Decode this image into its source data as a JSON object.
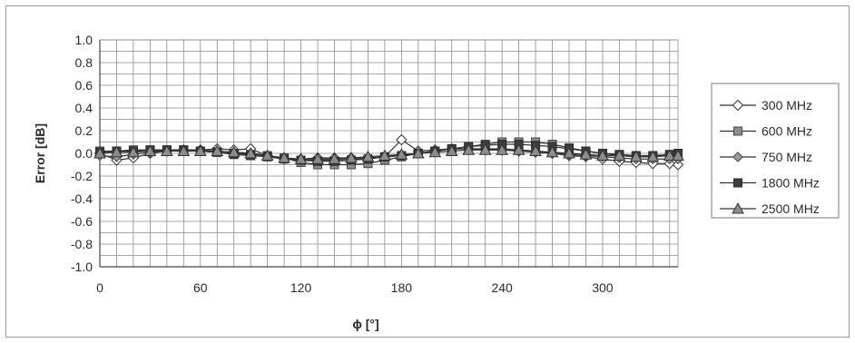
{
  "chart_data": {
    "type": "line",
    "xlabel": "ϕ [°]",
    "ylabel": "Error [dB]",
    "xlim": [
      0,
      345
    ],
    "ylim": [
      -1.0,
      1.0
    ],
    "x_ticks": [
      0,
      60,
      120,
      180,
      240,
      300
    ],
    "y_ticks": [
      1.0,
      0.8,
      0.6,
      0.4,
      0.2,
      0.0,
      -0.2,
      -0.4,
      -0.6,
      -0.8,
      -1.0
    ],
    "y_tick_labels": [
      "1.0",
      "0.8",
      "0.6",
      "0.4",
      "0.2",
      "0.0",
      "-0.2",
      "-0.4",
      "-0.6",
      "-0.8",
      "-1.0"
    ],
    "grid": true,
    "legend_position": "right",
    "x": [
      0,
      10,
      20,
      30,
      40,
      50,
      60,
      70,
      80,
      90,
      100,
      110,
      120,
      130,
      140,
      150,
      160,
      170,
      180,
      190,
      200,
      210,
      220,
      230,
      240,
      250,
      260,
      270,
      280,
      290,
      300,
      310,
      320,
      330,
      340,
      345
    ],
    "series": [
      {
        "name": "300 MHz",
        "marker": "diamond-open",
        "values": [
          0.0,
          -0.06,
          -0.04,
          0.0,
          0.02,
          0.03,
          0.03,
          0.04,
          0.03,
          0.04,
          -0.02,
          -0.05,
          -0.05,
          -0.04,
          -0.04,
          -0.04,
          -0.04,
          -0.03,
          0.12,
          0.02,
          0.03,
          0.04,
          0.04,
          0.03,
          0.03,
          0.02,
          0.01,
          0.0,
          -0.02,
          -0.03,
          -0.05,
          -0.07,
          -0.08,
          -0.09,
          -0.09,
          -0.1
        ]
      },
      {
        "name": "600 MHz",
        "marker": "square-grey",
        "values": [
          0.02,
          0.02,
          0.03,
          0.03,
          0.03,
          0.03,
          0.02,
          0.01,
          0.0,
          -0.01,
          -0.02,
          -0.04,
          -0.08,
          -0.1,
          -0.1,
          -0.1,
          -0.09,
          -0.06,
          -0.03,
          0.0,
          0.02,
          0.04,
          0.06,
          0.08,
          0.1,
          0.1,
          0.1,
          0.08,
          0.05,
          0.02,
          0.0,
          -0.02,
          -0.03,
          -0.03,
          -0.02,
          0.0
        ]
      },
      {
        "name": "750 MHz",
        "marker": "diamond-grey",
        "values": [
          -0.02,
          -0.03,
          -0.01,
          0.01,
          0.02,
          0.03,
          0.03,
          0.02,
          0.01,
          0.0,
          -0.02,
          -0.05,
          -0.06,
          -0.06,
          -0.06,
          -0.05,
          -0.05,
          -0.03,
          -0.02,
          0.0,
          0.02,
          0.04,
          0.04,
          0.04,
          0.04,
          0.03,
          0.02,
          0.0,
          -0.01,
          -0.02,
          -0.03,
          -0.04,
          -0.05,
          -0.05,
          -0.05,
          -0.05
        ]
      },
      {
        "name": "1800 MHz",
        "marker": "square-dark",
        "values": [
          0.01,
          0.02,
          0.02,
          0.03,
          0.03,
          0.03,
          0.02,
          0.01,
          -0.01,
          -0.02,
          -0.03,
          -0.05,
          -0.06,
          -0.07,
          -0.07,
          -0.06,
          -0.05,
          -0.03,
          -0.02,
          0.0,
          0.02,
          0.04,
          0.06,
          0.07,
          0.08,
          0.08,
          0.07,
          0.06,
          0.04,
          0.02,
          0.0,
          -0.01,
          -0.02,
          -0.02,
          -0.01,
          0.0
        ]
      },
      {
        "name": "2500 MHz",
        "marker": "triangle-grey",
        "values": [
          0.0,
          0.01,
          0.01,
          0.02,
          0.02,
          0.02,
          0.02,
          0.02,
          0.01,
          0.0,
          -0.02,
          -0.04,
          -0.05,
          -0.05,
          -0.05,
          -0.04,
          -0.03,
          -0.02,
          -0.01,
          0.0,
          0.01,
          0.02,
          0.03,
          0.03,
          0.03,
          0.03,
          0.02,
          0.01,
          0.0,
          -0.01,
          -0.02,
          -0.02,
          -0.03,
          -0.03,
          -0.02,
          -0.02
        ]
      }
    ]
  }
}
